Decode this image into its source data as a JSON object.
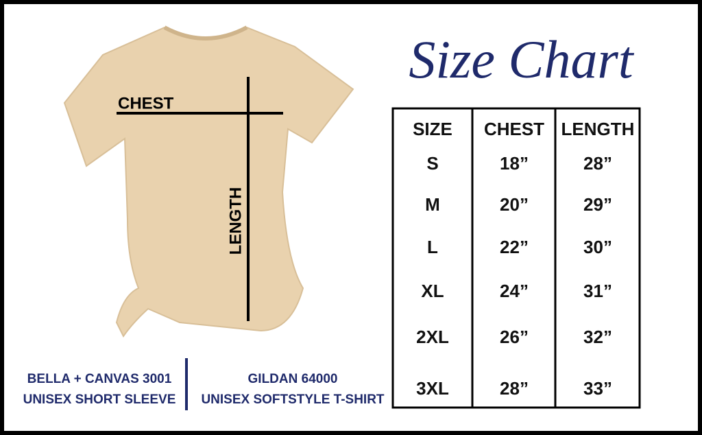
{
  "title": "Size Chart",
  "diagram": {
    "chest_label": "CHEST",
    "length_label": "LENGTH"
  },
  "table": {
    "header": [
      "SIZE",
      "CHEST",
      "LENGTH"
    ],
    "rows": [
      [
        "S",
        "18”",
        "28”"
      ],
      [
        "M",
        "20”",
        "29”"
      ],
      [
        "L",
        "22”",
        "30”"
      ],
      [
        "XL",
        "24”",
        "31”"
      ],
      [
        "2XL",
        "26”",
        "32”"
      ],
      [
        "3XL",
        "28”",
        "33”"
      ]
    ]
  },
  "brands": [
    {
      "line1": "BELLA + CANVAS 3001",
      "line2": "UNISEX SHORT SLEEVE"
    },
    {
      "line1": "GILDAN 64000",
      "line2": "UNISEX SOFTSTYLE T-SHIRT"
    }
  ]
}
